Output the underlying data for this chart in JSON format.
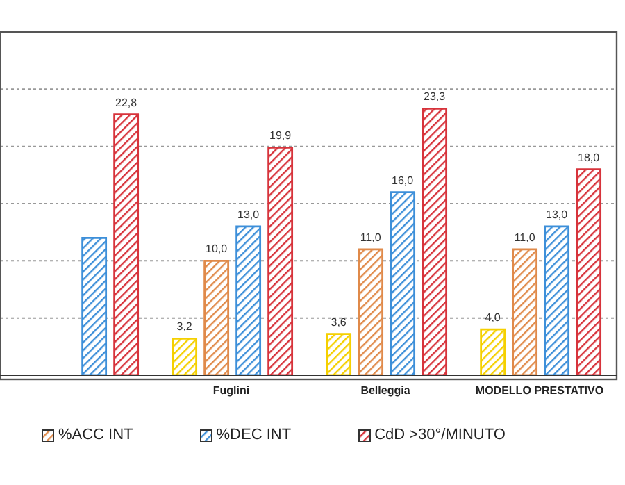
{
  "chart_data": {
    "type": "bar",
    "categories": [
      null,
      "Fuglini",
      "Belleggia",
      "MODELLO PRESTATIVO"
    ],
    "series": [
      {
        "color": "#f5d000",
        "values": [
          null,
          3.2,
          3.6,
          4.0
        ],
        "value_labels": [
          null,
          "3,2",
          "3,6",
          "4,0"
        ]
      },
      {
        "name": "%ACC INT",
        "color": "#e08a4a",
        "values": [
          null,
          10.0,
          11.0,
          11.0
        ],
        "value_labels": [
          null,
          "10,0",
          "11,0",
          "11,0"
        ]
      },
      {
        "name": "%DEC INT",
        "color": "#3d8fd9",
        "values": [
          12.0,
          13.0,
          16.0,
          13.0
        ],
        "value_labels": [
          null,
          "13,0",
          "16,0",
          "13,0"
        ]
      },
      {
        "name": "CdD >30°/MINUTO",
        "color": "#d7333b",
        "values": [
          22.8,
          19.9,
          23.3,
          18.0
        ],
        "value_labels": [
          "22,8",
          "19,9",
          "23,3",
          "18,0"
        ]
      }
    ],
    "ylim": [
      0,
      30
    ],
    "yticks": [
      {
        "value": 0,
        "label": null
      },
      {
        "value": 5,
        "label": null
      },
      {
        "value": 10,
        "label": null
      },
      {
        "value": 15,
        "label": null
      },
      {
        "value": 20,
        "label": null
      },
      {
        "value": 25,
        "label": null
      },
      {
        "value": 30,
        "label": null
      }
    ],
    "tick_labels": "x",
    "grid": "y",
    "legend": "bottom"
  }
}
